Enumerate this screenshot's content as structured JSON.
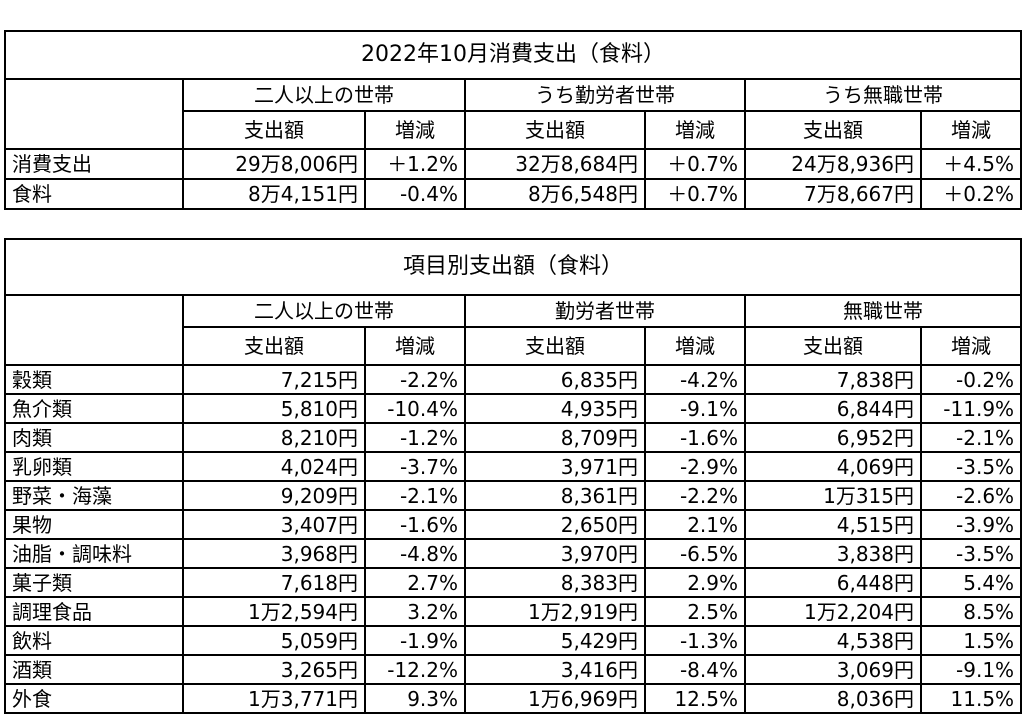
{
  "table1": {
    "title": "2022年10月消費支出（食料）",
    "groups": [
      "二人以上の世帯",
      "うち勤労者世帯",
      "うち無職世帯"
    ],
    "col_amount": "支出額",
    "col_change": "増減",
    "rows": [
      {
        "label": "消費支出",
        "v": [
          "29万8,006円",
          "＋1.2%",
          "32万8,684円",
          "＋0.7%",
          "24万8,936円",
          "＋4.5%"
        ]
      },
      {
        "label": "食料",
        "v": [
          "8万4,151円",
          "-0.4%",
          "8万6,548円",
          "＋0.7%",
          "7万8,667円",
          "＋0.2%"
        ]
      }
    ]
  },
  "table2": {
    "title": "項目別支出額（食料）",
    "groups": [
      "二人以上の世帯",
      "勤労者世帯",
      "無職世帯"
    ],
    "col_amount": "支出額",
    "col_change": "増減",
    "rows": [
      {
        "label": "穀類",
        "v": [
          "7,215円",
          "-2.2%",
          "6,835円",
          "-4.2%",
          "7,838円",
          "-0.2%"
        ]
      },
      {
        "label": "魚介類",
        "v": [
          "5,810円",
          "-10.4%",
          "4,935円",
          "-9.1%",
          "6,844円",
          "-11.9%"
        ]
      },
      {
        "label": "肉類",
        "v": [
          "8,210円",
          "-1.2%",
          "8,709円",
          "-1.6%",
          "6,952円",
          "-2.1%"
        ]
      },
      {
        "label": "乳卵類",
        "v": [
          "4,024円",
          "-3.7%",
          "3,971円",
          "-2.9%",
          "4,069円",
          "-3.5%"
        ]
      },
      {
        "label": "野菜・海藻",
        "v": [
          "9,209円",
          "-2.1%",
          "8,361円",
          "-2.2%",
          "1万315円",
          "-2.6%"
        ]
      },
      {
        "label": "果物",
        "v": [
          "3,407円",
          "-1.6%",
          "2,650円",
          "2.1%",
          "4,515円",
          "-3.9%"
        ]
      },
      {
        "label": "油脂・調味料",
        "v": [
          "3,968円",
          "-4.8%",
          "3,970円",
          "-6.5%",
          "3,838円",
          "-3.5%"
        ]
      },
      {
        "label": "菓子類",
        "v": [
          "7,618円",
          "2.7%",
          "8,383円",
          "2.9%",
          "6,448円",
          "5.4%"
        ]
      },
      {
        "label": "調理食品",
        "v": [
          "1万2,594円",
          "3.2%",
          "1万2,919円",
          "2.5%",
          "1万2,204円",
          "8.5%"
        ]
      },
      {
        "label": "飲料",
        "v": [
          "5,059円",
          "-1.9%",
          "5,429円",
          "-1.3%",
          "4,538円",
          "1.5%"
        ]
      },
      {
        "label": "酒類",
        "v": [
          "3,265円",
          "-12.2%",
          "3,416円",
          "-8.4%",
          "3,069円",
          "-9.1%"
        ]
      },
      {
        "label": "外食",
        "v": [
          "1万3,771円",
          "9.3%",
          "1万6,969円",
          "12.5%",
          "8,036円",
          "11.5%"
        ]
      }
    ]
  }
}
